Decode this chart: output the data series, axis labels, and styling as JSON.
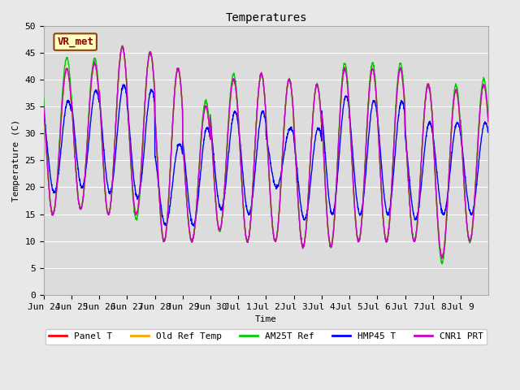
{
  "title": "Temperatures",
  "xlabel": "Time",
  "ylabel": "Temperature (C)",
  "ylim": [
    0,
    50
  ],
  "fig_facecolor": "#e8e8e8",
  "plot_facecolor": "#dcdcdc",
  "grid_color": "#ffffff",
  "annotation_text": "VR_met",
  "annotation_box_color": "#ffffc0",
  "annotation_text_color": "#8b0000",
  "annotation_border_color": "#8b4513",
  "series_colors": [
    "#ff0000",
    "#ffa500",
    "#00cc00",
    "#0000ff",
    "#cc00cc"
  ],
  "series_labels": [
    "Panel T",
    "Old Ref Temp",
    "AM25T Ref",
    "HMP45 T",
    "CNR1 PRT"
  ],
  "x_tick_labels": [
    "Jun 24",
    "Jun 25",
    "Jun 26",
    "Jun 27",
    "Jun 28",
    "Jun 29",
    "Jun 30",
    "Jul 1",
    "Jul 2",
    "Jul 3",
    "Jul 4",
    "Jul 5",
    "Jul 6",
    "Jul 7",
    "Jul 8",
    "Jul 9"
  ],
  "num_days": 16,
  "points_per_day": 144,
  "day_maxs_base": [
    42,
    43,
    46,
    45,
    42,
    35,
    40,
    41,
    40,
    39,
    42,
    42,
    42,
    39,
    38,
    39
  ],
  "day_mins_base": [
    15,
    16,
    15,
    15,
    10,
    10,
    12,
    10,
    10,
    9,
    9,
    10,
    10,
    10,
    7,
    10
  ],
  "green_day_maxs": [
    44,
    44,
    46,
    45,
    42,
    36,
    41,
    41,
    40,
    39,
    43,
    43,
    43,
    39,
    39,
    40
  ],
  "green_day_mins": [
    15,
    16,
    15,
    14,
    10,
    10,
    12,
    10,
    10,
    9,
    9,
    10,
    10,
    10,
    6,
    10
  ],
  "blue_day_maxs": [
    36,
    38,
    39,
    38,
    28,
    31,
    34,
    34,
    31,
    31,
    37,
    36,
    36,
    32,
    32,
    32
  ],
  "blue_day_mins": [
    19,
    20,
    19,
    18,
    13,
    13,
    16,
    15,
    20,
    14,
    15,
    15,
    15,
    14,
    15,
    15
  ],
  "font_family": "monospace",
  "title_fontsize": 10,
  "axis_fontsize": 8,
  "legend_fontsize": 8
}
